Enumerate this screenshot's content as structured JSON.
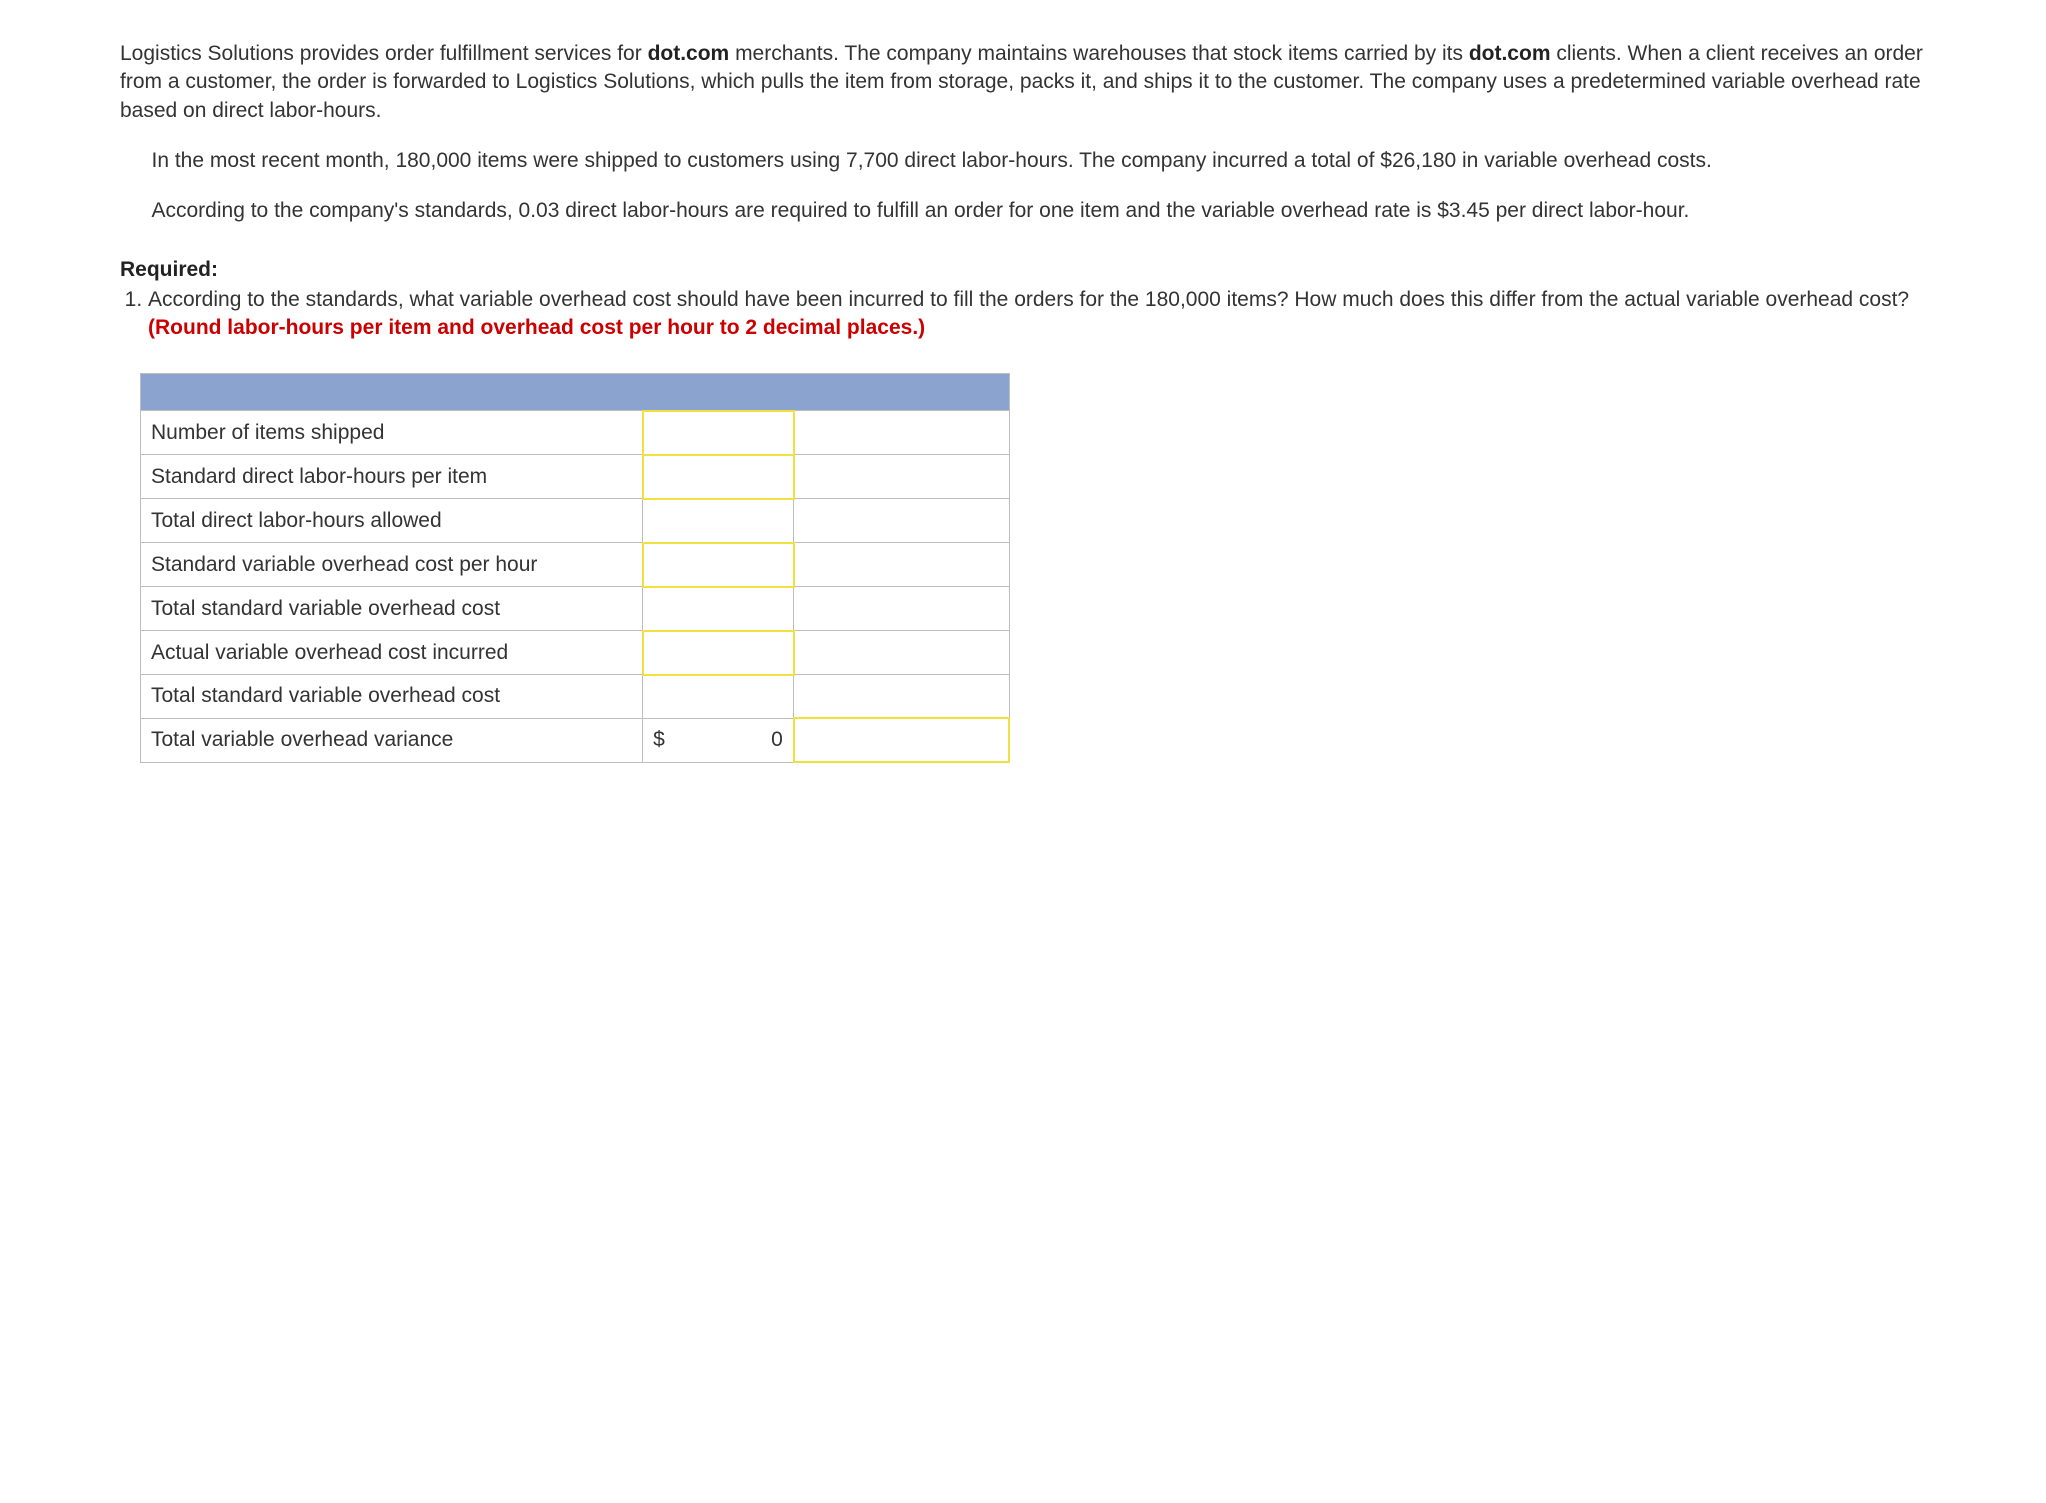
{
  "paragraphs": {
    "p1_part1": "Logistics Solutions provides order fulfillment services for ",
    "bold1": "dot.com",
    "p1_part2": " merchants. The company maintains warehouses that stock items carried by its ",
    "bold2": "dot.com",
    "p1_part3": " clients. When a client receives an order from a customer, the order is forwarded to Logistics Solutions, which pulls the item from storage, packs it, and ships it to the customer. The company uses a predetermined variable overhead rate based on direct labor-hours.",
    "p2": "In the most recent month, 180,000 items were shipped to customers using 7,700 direct labor-hours. The company incurred a total of $26,180 in variable overhead costs.",
    "p3": "According to the company's standards, 0.03 direct labor-hours are required to fulfill an order for one item and the variable overhead rate is $3.45 per direct labor-hour."
  },
  "required": {
    "label": "Required:",
    "q1_part1": "According to the standards, what variable overhead cost should have been incurred to fill the orders for the 180,000 items? How much does this differ from the actual variable overhead cost? ",
    "q1_red": "(Round labor-hours per item and overhead cost per hour to 2 decimal places.)"
  },
  "table": {
    "header_bg": "#8ba3cf",
    "yellow_border": "#f0e040",
    "grid_color": "#bdbdbd",
    "rows": [
      {
        "label": "Number of items shipped",
        "value": "",
        "yellow": true,
        "extra_yellow": false
      },
      {
        "label": "Standard direct labor-hours per item",
        "value": "",
        "yellow": true,
        "extra_yellow": false
      },
      {
        "label": "Total direct labor-hours allowed",
        "value": "",
        "yellow": false,
        "extra_yellow": false
      },
      {
        "label": "Standard variable overhead cost per hour",
        "value": "",
        "yellow": true,
        "extra_yellow": false
      },
      {
        "label": "Total standard variable overhead cost",
        "value": "",
        "yellow": false,
        "extra_yellow": false
      },
      {
        "label": "Actual variable overhead cost incurred",
        "value": "",
        "yellow": true,
        "extra_yellow": false
      },
      {
        "label": "Total standard variable overhead cost",
        "value": "",
        "yellow": false,
        "extra_yellow": false
      },
      {
        "label": "Total variable overhead variance",
        "value_prefix": "$",
        "value": "0",
        "yellow": false,
        "extra_yellow": true
      }
    ]
  }
}
